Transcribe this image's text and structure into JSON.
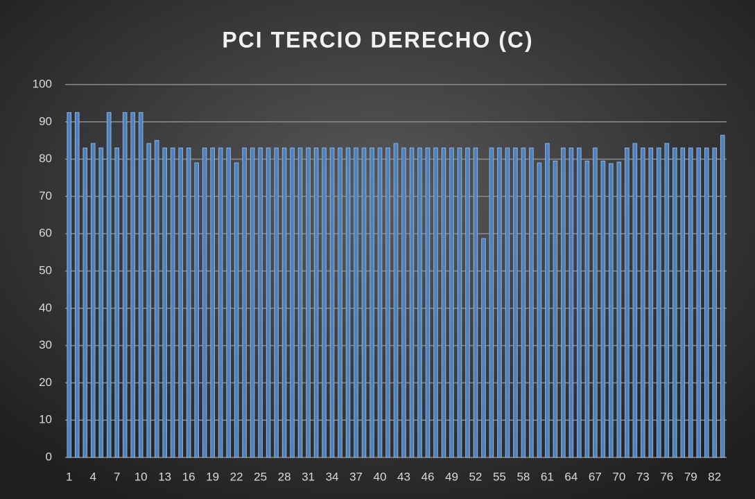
{
  "chart_data": {
    "type": "bar",
    "title": "PCI TERCIO DERECHO (C)",
    "categories": [
      "1",
      null,
      null,
      "4",
      null,
      null,
      "7",
      null,
      null,
      "10",
      null,
      null,
      "13",
      null,
      null,
      "16",
      null,
      null,
      "19",
      null,
      null,
      "22",
      null,
      null,
      "25",
      null,
      null,
      "28",
      null,
      null,
      "31",
      null,
      null,
      "34",
      null,
      null,
      "37",
      null,
      null,
      "40",
      null,
      null,
      "43",
      null,
      null,
      "46",
      null,
      null,
      "49",
      null,
      null,
      "52",
      null,
      null,
      "55",
      null,
      null,
      "58",
      null,
      null,
      "61",
      null,
      null,
      "64",
      null,
      null,
      "67",
      null,
      null,
      "70",
      null,
      null,
      "73",
      null,
      null,
      "76",
      null,
      null,
      "79",
      null,
      null,
      "82",
      null
    ],
    "values": [
      92.5,
      92.5,
      83,
      84.2,
      83,
      92.5,
      83,
      92.5,
      92.5,
      92.5,
      84.2,
      85,
      83,
      83,
      83,
      83,
      79,
      83,
      83,
      83,
      83,
      79,
      83,
      83,
      83,
      83,
      83,
      83,
      83,
      83,
      83,
      83,
      83,
      83,
      83,
      83,
      83,
      83,
      83,
      83,
      83,
      84.2,
      83,
      83,
      83,
      83,
      83,
      83,
      83,
      83,
      83,
      83,
      58.7,
      83,
      83,
      83,
      83,
      83,
      83,
      79,
      84.2,
      79.5,
      83,
      83,
      83,
      79.5,
      83,
      79.5,
      78.8,
      79.2,
      83,
      84.2,
      83,
      83,
      83,
      84.2,
      83,
      83,
      83,
      83,
      83,
      83,
      86.4
    ],
    "color": "#4f81bd",
    "ylim": [
      0,
      100
    ],
    "yticks": [
      0,
      10,
      20,
      30,
      40,
      50,
      60,
      70,
      80,
      90,
      100
    ],
    "grid": true
  }
}
